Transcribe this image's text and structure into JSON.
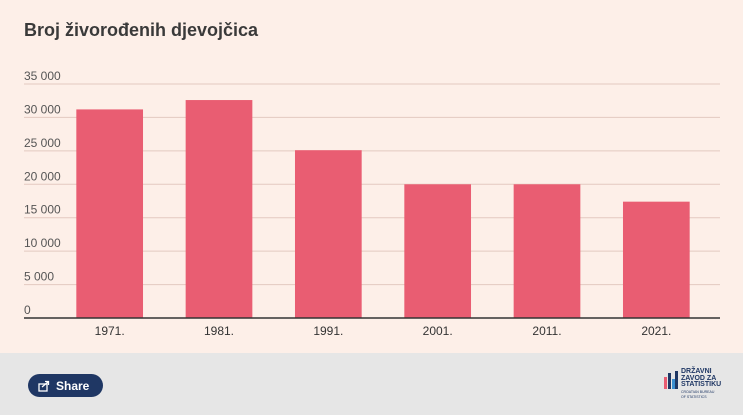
{
  "chart": {
    "title": "Broj živorođenih djevojčica"
  },
  "chart_data": {
    "type": "bar",
    "title": "Broj živorođenih djevojčica",
    "categories": [
      "1971.",
      "1981.",
      "1991.",
      "2001.",
      "2011.",
      "2021."
    ],
    "values": [
      31200,
      32600,
      25100,
      20000,
      20000,
      17400
    ],
    "xlabel": "",
    "ylabel": "",
    "ylim": [
      0,
      35000
    ],
    "yticks": [
      0,
      5000,
      10000,
      15000,
      20000,
      25000,
      30000,
      35000
    ],
    "ytick_labels": [
      "0",
      "5 000",
      "10 000",
      "15 000",
      "20 000",
      "25 000",
      "30 000",
      "35 000"
    ],
    "grid": true,
    "bar_color": "#e95d72",
    "legend": "none"
  },
  "footer": {
    "share_label": "Share",
    "logo": {
      "line1": "DRŽAVNI",
      "line2": "ZAVOD ZA",
      "line3": "STATISTIKU",
      "line4": "CROATIAN BUREAU",
      "line5": "OF STATISTICS"
    }
  },
  "colors": {
    "panel_bg": "#fdefe8",
    "footer_bg": "#e6e6e6",
    "bar": "#e95d72",
    "share_bg": "#1f3764"
  }
}
